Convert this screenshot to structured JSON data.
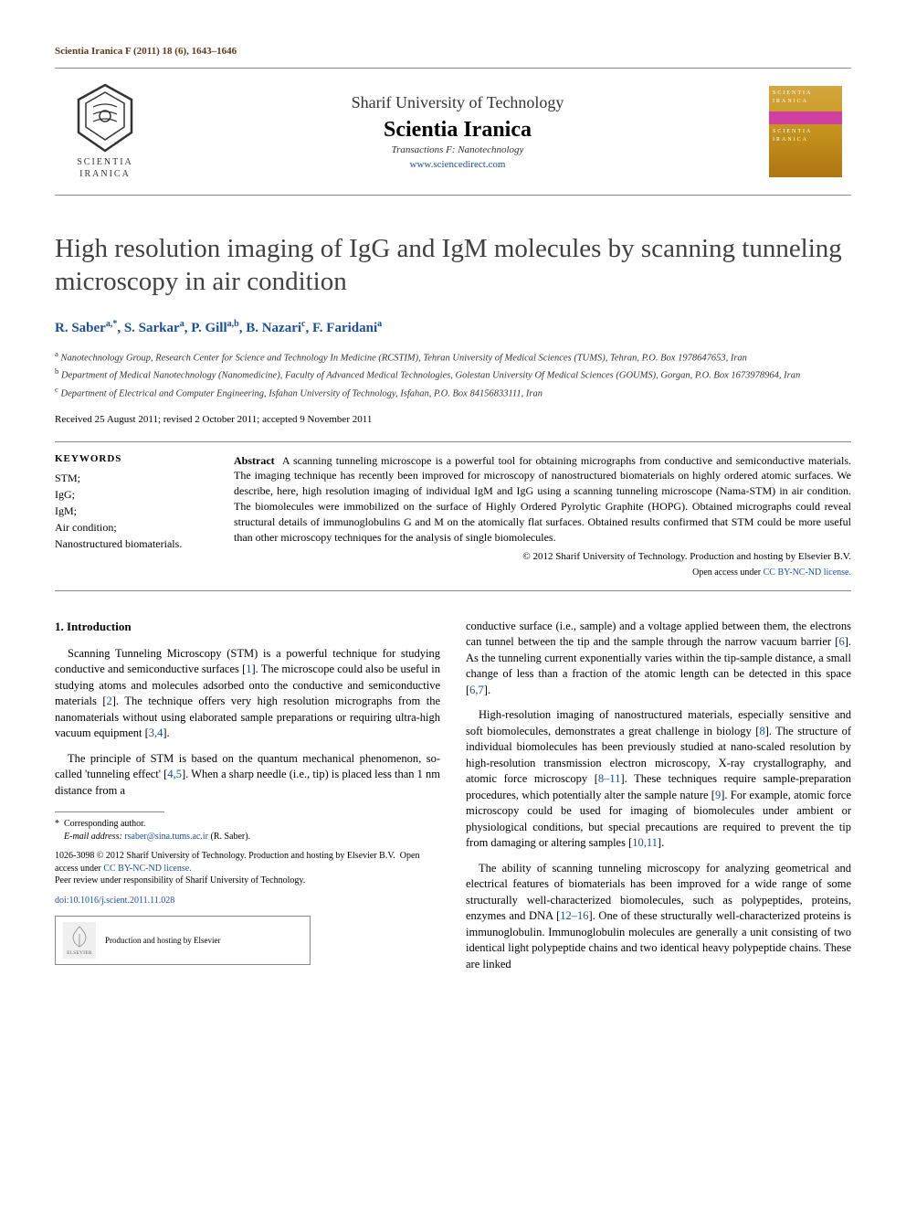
{
  "journal_ref": "Scientia Iranica F (2011) 18 (6), 1643–1646",
  "header": {
    "logo_text_l1": "SCIENTIA",
    "logo_text_l2": "IRANICA",
    "university": "Sharif University of Technology",
    "journal": "Scientia Iranica",
    "transactions": "Transactions F: Nanotechnology",
    "link": "www.sciencedirect.com",
    "cover_l1": "SCIENTIA",
    "cover_l2": "IRANICA",
    "cover_l3": "SCIENTIA",
    "cover_l4": "IRANICA"
  },
  "title": "High resolution imaging of IgG and IgM molecules by scanning tunneling microscopy in air condition",
  "authors_html": "R. Saber<sup>a,*</sup>, S. Sarkar<sup>a</sup>, P. Gill<sup>a,b</sup>, B. Nazari<sup>c</sup>, F. Faridani<sup>a</sup>",
  "affiliations": {
    "a": "Nanotechnology Group, Research Center for Science and Technology In Medicine (RCSTIM), Tehran University of Medical Sciences (TUMS), Tehran, P.O. Box 1978647653, Iran",
    "b": "Department of Medical Nanotechnology (Nanomedicine), Faculty of Advanced Medical Technologies, Golestan University Of Medical Sciences (GOUMS), Gorgan, P.O. Box 1673978964, Iran",
    "c": "Department of Electrical and Computer Engineering, Isfahan University of Technology, Isfahan, P.O. Box 84156833111, Iran"
  },
  "dates": "Received 25 August 2011; revised 2 October 2011; accepted 9 November 2011",
  "keywords_head": "KEYWORDS",
  "keywords": "STM;\nIgG;\nIgM;\nAir condition;\nNanostructured biomaterials.",
  "abstract_label": "Abstract",
  "abstract": "A scanning tunneling microscope is a powerful tool for obtaining micrographs from conductive and semiconductive materials. The imaging technique has recently been improved for microscopy of nanostructured biomaterials on highly ordered atomic surfaces. We describe, here, high resolution imaging of individual IgM and IgG using a scanning tunneling microscope (Nama-STM) in air condition. The biomolecules were immobilized on the surface of Highly Ordered Pyrolytic Graphite (HOPG). Obtained micrographs could reveal structural details of immunoglobulins G and M on the atomically flat surfaces. Obtained results confirmed that STM could be more useful than other microscopy techniques for the analysis of single biomolecules.",
  "copyright": "© 2012 Sharif University of Technology. Production and hosting by Elsevier B.V.",
  "license_prefix": "Open access under ",
  "license_link": "CC BY-NC-ND license.",
  "section1_head": "1.  Introduction",
  "col1": {
    "p1": "Scanning Tunneling Microscopy (STM) is a powerful technique for studying conductive and semiconductive surfaces [1]. The microscope could also be useful in studying atoms and molecules adsorbed onto the conductive and semiconductive materials [2]. The technique offers very high resolution micrographs from the nanomaterials without using elaborated sample preparations or requiring ultra-high vacuum equipment [3,4].",
    "p2": "The principle of STM is based on the quantum mechanical phenomenon, so-called 'tunneling effect' [4,5]. When a sharp needle (i.e., tip) is placed less than 1 nm distance from a"
  },
  "footnote": {
    "corr": "Corresponding author.",
    "email_label": "E-mail address:",
    "email": "rsaber@sina.tums.ac.ir",
    "email_name": "(R. Saber).",
    "issn": "1026-3098 © 2012 Sharif University of Technology. Production and hosting by Elsevier B.V.",
    "license_prefix": "Open access under ",
    "license_link": "CC BY-NC-ND license.",
    "peer": "Peer review under responsibility of Sharif  University of Technology.",
    "doi": "doi:10.1016/j.scient.2011.11.028",
    "elsevier_text": "Production and hosting by Elsevier",
    "elsevier_name": "ELSEVIER"
  },
  "col2": {
    "p1": "conductive surface (i.e., sample) and a voltage applied between them, the electrons can tunnel between the tip and the sample through the narrow vacuum barrier [6]. As the tunneling current exponentially varies within the tip-sample distance, a small change of less than a fraction of the atomic length can be detected in this space [6,7].",
    "p2": "High-resolution imaging of nanostructured materials, especially sensitive and soft biomolecules, demonstrates a great challenge in biology [8]. The structure of individual biomolecules has been previously studied at nano-scaled resolution by high-resolution transmission electron microscopy, X-ray crystallography, and atomic force microscopy [8–11]. These techniques require sample-preparation procedures, which potentially alter the sample nature [9]. For example, atomic force microscopy could be used for imaging of biomolecules under ambient or physiological conditions, but special precautions are required to prevent the tip from damaging or altering samples [10,11].",
    "p3": "The ability of scanning tunneling microscopy for analyzing geometrical and electrical features of biomaterials has been improved for a wide range of some structurally well-characterized biomolecules, such as polypeptides, proteins, enzymes and DNA [12–16]. One of these structurally well-characterized proteins is immunoglobulin. Immunoglobulin molecules are generally a unit consisting of two identical light polypeptide chains and two identical heavy polypeptide chains. These are linked"
  },
  "refs": {
    "r1": "1",
    "r2": "2",
    "r34": "3,4",
    "r45": "4,5",
    "r6": "6",
    "r67": "6,7",
    "r8": "8",
    "r811": "8–11",
    "r9": "9",
    "r1011": "10,11",
    "r1216": "12–16"
  },
  "colors": {
    "link": "#1a4fa0",
    "brown": "#5a3a1a",
    "heading": "#404040"
  }
}
